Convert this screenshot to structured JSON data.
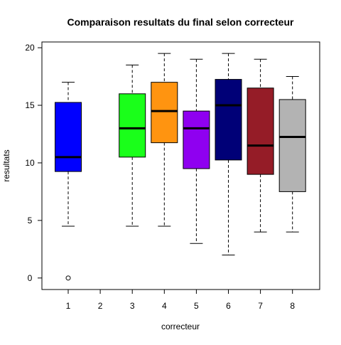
{
  "chart_data": {
    "type": "boxplot",
    "title": "Comparaison resultats du final selon correcteur",
    "xlabel": "correcteur",
    "ylabel": "resultats",
    "ylim": [
      -1,
      20.5
    ],
    "yticks": [
      0,
      5,
      10,
      15,
      20
    ],
    "categories": [
      "1",
      "2",
      "3",
      "4",
      "5",
      "6",
      "7",
      "8"
    ],
    "grid": false,
    "boxes": [
      {
        "category": "1",
        "color": "#0000FF",
        "whisker_low": 4.5,
        "q1": 9.25,
        "median": 10.5,
        "q3": 15.25,
        "whisker_high": 17.0,
        "outliers": [
          0
        ]
      },
      {
        "category": "2",
        "empty": true
      },
      {
        "category": "3",
        "color": "#1AFF1A",
        "whisker_low": 4.5,
        "q1": 10.5,
        "median": 13.0,
        "q3": 16.0,
        "whisker_high": 18.5,
        "outliers": []
      },
      {
        "category": "4",
        "color": "#FF9410",
        "whisker_low": 4.5,
        "q1": 11.75,
        "median": 14.5,
        "q3": 17.0,
        "whisker_high": 19.5,
        "outliers": []
      },
      {
        "category": "5",
        "color": "#8F00F0",
        "whisker_low": 3.0,
        "q1": 9.5,
        "median": 13.0,
        "q3": 14.5,
        "whisker_high": 19.0,
        "outliers": []
      },
      {
        "category": "6",
        "color": "#000077",
        "whisker_low": 2.0,
        "q1": 10.25,
        "median": 15.0,
        "q3": 17.25,
        "whisker_high": 19.5,
        "outliers": []
      },
      {
        "category": "7",
        "color": "#951C27",
        "whisker_low": 4.0,
        "q1": 9.0,
        "median": 11.5,
        "q3": 16.5,
        "whisker_high": 19.0,
        "outliers": []
      },
      {
        "category": "8",
        "color": "#B3B3B3",
        "whisker_low": 4.0,
        "q1": 7.5,
        "median": 12.25,
        "q3": 15.5,
        "whisker_high": 17.5,
        "outliers": []
      }
    ]
  }
}
